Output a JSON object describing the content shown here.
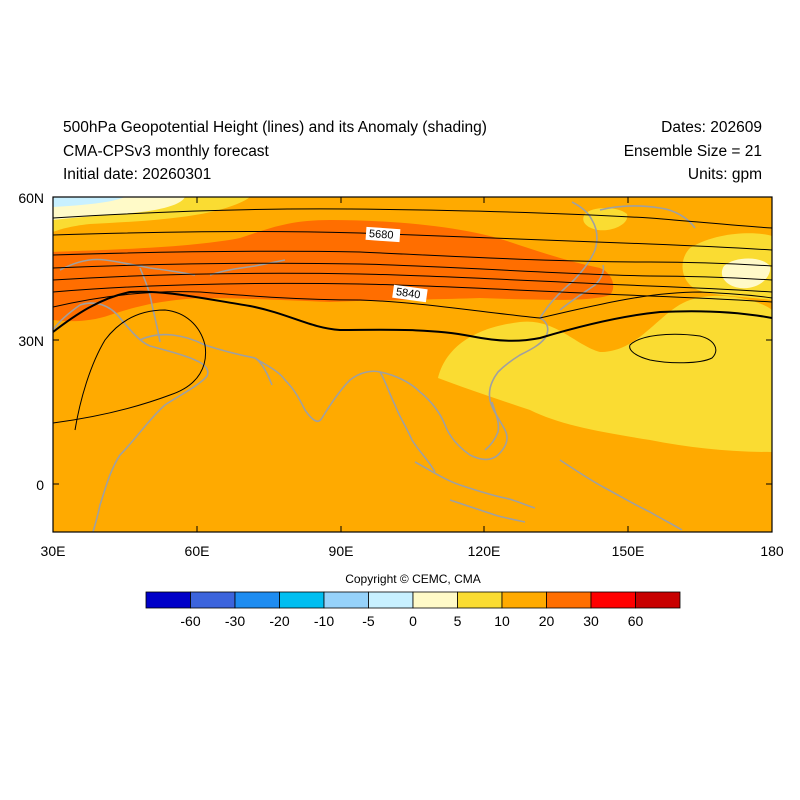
{
  "header": {
    "title": "500hPa Geopotential Height (lines) and its Anomaly (shading)",
    "model": "CMA-CPSv3 monthly forecast",
    "initial_date": "Initial date: 20260301",
    "dates": "Dates: 202609",
    "ensemble": "Ensemble Size = 21",
    "units": "Units: gpm"
  },
  "axes": {
    "lat_labels": [
      "60N",
      "30N",
      "0"
    ],
    "lon_labels": [
      "30E",
      "60E",
      "90E",
      "120E",
      "150E",
      "180"
    ]
  },
  "contour_labels": [
    "5680",
    "5840"
  ],
  "colorbar": {
    "colors": [
      "#0000c8",
      "#3c64dc",
      "#1e8cf0",
      "#00bef0",
      "#96d2fa",
      "#c8f0ff",
      "#fffac8",
      "#fadc32",
      "#ffaa00",
      "#ff6e00",
      "#ff0000",
      "#c80000"
    ],
    "labels": [
      "-60",
      "-30",
      "-20",
      "-10",
      "-5",
      "0",
      "5",
      "10",
      "20",
      "30",
      "60"
    ]
  },
  "copyright": "Copyright © CEMC, CMA"
}
